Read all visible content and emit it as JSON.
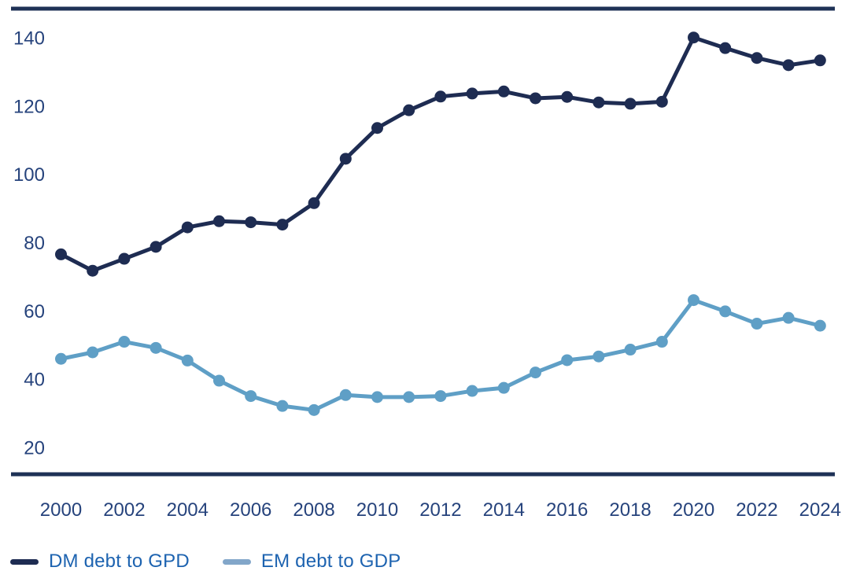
{
  "chart_data": {
    "type": "line",
    "title": "",
    "xlabel": "",
    "ylabel": "",
    "x": [
      2000,
      2001,
      2002,
      2003,
      2004,
      2005,
      2006,
      2007,
      2008,
      2009,
      2010,
      2011,
      2012,
      2013,
      2014,
      2015,
      2016,
      2017,
      2018,
      2019,
      2020,
      2021,
      2022,
      2023,
      2024
    ],
    "x_tick_labels": [
      "2000",
      "2002",
      "2004",
      "2006",
      "2008",
      "2010",
      "2012",
      "2014",
      "2016",
      "2018",
      "2020",
      "2022",
      "2024"
    ],
    "x_tick_every": 2,
    "yticks": [
      20,
      40,
      60,
      80,
      100,
      120,
      140
    ],
    "ylim": [
      20,
      140
    ],
    "grid": false,
    "markers": true,
    "legend_position": "bottom-left",
    "series": [
      {
        "name": "DM debt to GPD",
        "color": "#1e2c52",
        "legend_swatch_color": "#1e2c52",
        "values": [
          76.8,
          72.0,
          75.5,
          79.0,
          84.7,
          86.5,
          86.2,
          85.5,
          91.8,
          104.8,
          113.8,
          119.0,
          123.0,
          123.9,
          124.5,
          122.5,
          122.9,
          121.3,
          120.9,
          121.5,
          140.3,
          137.2,
          134.3,
          132.2,
          133.6
        ]
      },
      {
        "name": "EM debt to GDP",
        "color": "#5f9fc6",
        "legend_swatch_color": "#82a6c9",
        "values": [
          46.2,
          48.1,
          51.2,
          49.4,
          45.7,
          39.8,
          35.3,
          32.4,
          31.2,
          35.6,
          35.0,
          35.0,
          35.3,
          36.8,
          37.7,
          42.2,
          45.8,
          46.9,
          48.9,
          51.2,
          63.4,
          60.1,
          56.5,
          58.2,
          55.9
        ]
      }
    ],
    "colors": {
      "axis_rule": "#1e3156",
      "tick_label": "#26437c",
      "legend_text": "#1d63b0",
      "background": "#ffffff"
    }
  }
}
